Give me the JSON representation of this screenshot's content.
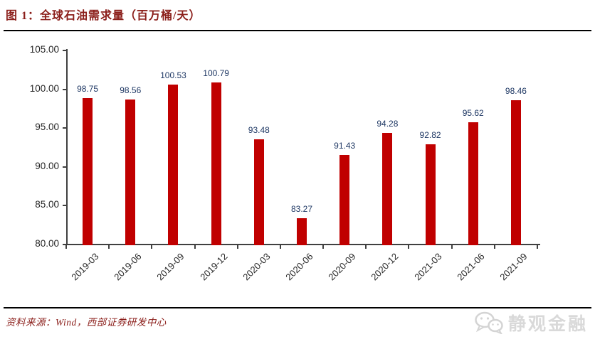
{
  "page": {
    "title": "图 1：全球石油需求量（百万桶/天）"
  },
  "chart_data": {
    "type": "bar",
    "title": "全球石油需求量（百万桶/天）",
    "categories": [
      "2019-03",
      "2019-06",
      "2019-09",
      "2019-12",
      "2020-03",
      "2020-06",
      "2020-09",
      "2020-12",
      "2021-03",
      "2021-06",
      "2021-09"
    ],
    "values": [
      98.75,
      98.56,
      100.53,
      100.79,
      93.48,
      83.27,
      91.43,
      94.28,
      92.82,
      95.62,
      98.46
    ],
    "value_labels": [
      "98.75",
      "98.56",
      "100.53",
      "100.79",
      "93.48",
      "83.27",
      "91.43",
      "94.28",
      "92.82",
      "95.62",
      "98.46"
    ],
    "xlabel": "",
    "ylabel": "",
    "ylim": [
      80,
      105
    ],
    "ytick_values": [
      105,
      100,
      95,
      90,
      85,
      80
    ],
    "ytick_labels": [
      "105.00",
      "100.00",
      "95.00",
      "90.00",
      "85.00",
      "80.00"
    ],
    "grid": false,
    "legend": "none",
    "bar_color": "#C00000",
    "label_color": "#1F3864",
    "axis_color": "#404040",
    "tick_label_color": "#262626"
  },
  "footer": {
    "source": "资料来源：Wind，西部证券研发中心"
  },
  "watermark": {
    "icon": "chat-bubbles-icon",
    "text": "静观金融",
    "color": "#D9D9D9"
  },
  "colors": {
    "heading_red": "#8B1E1A",
    "rule_black": "#000000",
    "background": "#FFFFFF"
  }
}
